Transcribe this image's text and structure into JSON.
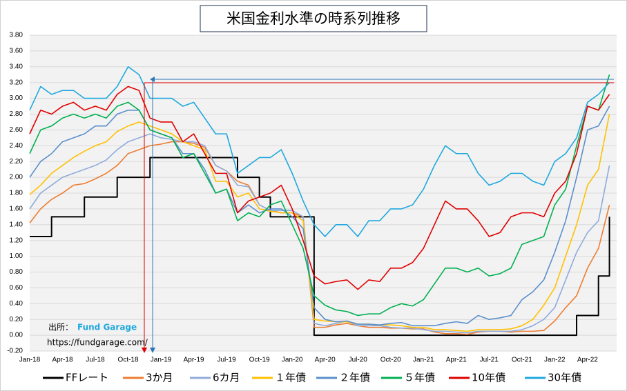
{
  "chart_data": {
    "type": "line",
    "title": "米国金利水準の時系列推移",
    "categories": [
      "Jan-18",
      null,
      null,
      "Apr-18",
      null,
      null,
      "Jul-18",
      null,
      null,
      "Oct-18",
      null,
      null,
      "Jan-19",
      null,
      null,
      "Apr-19",
      null,
      null,
      "Jul-19",
      null,
      null,
      "Oct-19",
      null,
      null,
      "Jan-20",
      null,
      null,
      "Apr-20",
      null,
      null,
      "Jul-20",
      null,
      null,
      "Oct-20",
      null,
      null,
      "Jan-21",
      null,
      null,
      "Apr-21",
      null,
      null,
      "Jul-21",
      null,
      null,
      "Oct-21",
      null,
      null,
      "Jan-22",
      null,
      null,
      "Apr-22",
      null,
      null
    ],
    "ylim": [
      -0.2,
      3.8
    ],
    "yticks": [
      {
        "value": -0.2,
        "label": "-0.20"
      },
      {
        "value": 0,
        "label": "0.00"
      },
      {
        "value": 0.2,
        "label": "0.20"
      },
      {
        "value": 0.4,
        "label": "0.40"
      },
      {
        "value": 0.6,
        "label": "0.60"
      },
      {
        "value": 0.8,
        "label": "0.80"
      },
      {
        "value": 1.0,
        "label": "1.00"
      },
      {
        "value": 1.2,
        "label": "1.20"
      },
      {
        "value": 1.4,
        "label": "1.40"
      },
      {
        "value": 1.6,
        "label": "1.60"
      },
      {
        "value": 1.8,
        "label": "1.80"
      },
      {
        "value": 2.0,
        "label": "2.00"
      },
      {
        "value": 2.2,
        "label": "2.20"
      },
      {
        "value": 2.4,
        "label": "2.40"
      },
      {
        "value": 2.6,
        "label": "2.60"
      },
      {
        "value": 2.8,
        "label": "2.80"
      },
      {
        "value": 3.0,
        "label": "3.00"
      },
      {
        "value": 3.2,
        "label": "3.20"
      },
      {
        "value": 3.4,
        "label": "3.40"
      },
      {
        "value": 3.6,
        "label": "3.60"
      },
      {
        "value": 3.8,
        "label": "3.80"
      }
    ],
    "grid": true,
    "source_label": "出所：",
    "source_name": "Fund Garage",
    "source_url": "https://fundgarage.com/",
    "series": [
      {
        "name": "FFレート",
        "color": "#000000",
        "step": true,
        "values": [
          1.25,
          1.25,
          1.5,
          1.5,
          1.5,
          1.75,
          1.75,
          1.75,
          2.0,
          2.0,
          2.0,
          2.25,
          2.25,
          2.25,
          2.25,
          2.25,
          2.25,
          2.25,
          2.25,
          2.0,
          2.0,
          1.75,
          1.5,
          1.5,
          1.5,
          1.5,
          0,
          0,
          0,
          0,
          0,
          0,
          0,
          0,
          0,
          0,
          0,
          0,
          0,
          0,
          0,
          0,
          0,
          0,
          0,
          0,
          0,
          0,
          0,
          0,
          0.25,
          0.25,
          0.75,
          1.5
        ]
      },
      {
        "name": "3か月",
        "color": "#ED7D31",
        "values": [
          1.42,
          1.6,
          1.72,
          1.8,
          1.9,
          1.92,
          1.98,
          2.05,
          2.15,
          2.3,
          2.35,
          2.4,
          2.42,
          2.45,
          2.45,
          2.43,
          2.38,
          2.15,
          2.08,
          1.95,
          1.9,
          1.65,
          1.58,
          1.55,
          1.55,
          1.5,
          0.1,
          0.1,
          0.13,
          0.15,
          0.12,
          0.1,
          0.1,
          0.09,
          0.09,
          0.08,
          0.08,
          0.04,
          0.02,
          0.02,
          0.01,
          0.04,
          0.05,
          0.05,
          0.04,
          0.05,
          0.05,
          0.06,
          0.18,
          0.35,
          0.5,
          0.85,
          1.1,
          1.65
        ]
      },
      {
        "name": "6カ月",
        "color": "#8FAADC",
        "values": [
          1.6,
          1.8,
          1.9,
          2.0,
          2.05,
          2.1,
          2.15,
          2.22,
          2.35,
          2.45,
          2.5,
          2.55,
          2.5,
          2.48,
          2.45,
          2.45,
          2.4,
          2.15,
          2.08,
          1.9,
          1.88,
          1.65,
          1.58,
          1.58,
          1.58,
          1.5,
          0.15,
          0.12,
          0.15,
          0.18,
          0.12,
          0.12,
          0.12,
          0.1,
          0.09,
          0.09,
          0.07,
          0.05,
          0.05,
          0.04,
          0.03,
          0.05,
          0.05,
          0.05,
          0.05,
          0.07,
          0.12,
          0.2,
          0.35,
          0.7,
          1.05,
          1.3,
          1.45,
          2.15
        ]
      },
      {
        "name": "１年債",
        "color": "#FFC000",
        "values": [
          1.78,
          1.9,
          2.05,
          2.15,
          2.25,
          2.33,
          2.4,
          2.45,
          2.58,
          2.65,
          2.7,
          2.65,
          2.6,
          2.55,
          2.45,
          2.4,
          2.35,
          1.95,
          1.95,
          1.75,
          1.8,
          1.6,
          1.57,
          1.55,
          1.55,
          1.45,
          0.2,
          0.18,
          0.17,
          0.17,
          0.14,
          0.14,
          0.13,
          0.13,
          0.12,
          0.1,
          0.1,
          0.07,
          0.07,
          0.06,
          0.05,
          0.07,
          0.07,
          0.07,
          0.08,
          0.12,
          0.2,
          0.38,
          0.6,
          1.0,
          1.4,
          1.9,
          2.1,
          2.8
        ]
      },
      {
        "name": "２年債",
        "color": "#5B8FCC",
        "values": [
          2.0,
          2.2,
          2.3,
          2.45,
          2.5,
          2.55,
          2.65,
          2.65,
          2.8,
          2.85,
          2.85,
          2.6,
          2.55,
          2.5,
          2.3,
          2.3,
          2.1,
          1.8,
          1.85,
          1.55,
          1.65,
          1.55,
          1.6,
          1.6,
          1.5,
          1.35,
          0.35,
          0.2,
          0.17,
          0.18,
          0.14,
          0.14,
          0.13,
          0.15,
          0.16,
          0.12,
          0.12,
          0.12,
          0.15,
          0.17,
          0.15,
          0.25,
          0.2,
          0.22,
          0.25,
          0.45,
          0.55,
          0.7,
          1.05,
          1.45,
          2.0,
          2.6,
          2.65,
          2.9
        ]
      },
      {
        "name": "５年債",
        "color": "#00B050",
        "values": [
          2.3,
          2.6,
          2.65,
          2.75,
          2.8,
          2.75,
          2.8,
          2.75,
          2.9,
          2.95,
          2.85,
          2.6,
          2.55,
          2.5,
          2.25,
          2.3,
          2.05,
          1.8,
          1.85,
          1.45,
          1.55,
          1.5,
          1.65,
          1.7,
          1.4,
          1.1,
          0.5,
          0.38,
          0.32,
          0.3,
          0.25,
          0.27,
          0.27,
          0.35,
          0.4,
          0.37,
          0.45,
          0.65,
          0.85,
          0.85,
          0.8,
          0.85,
          0.75,
          0.78,
          0.85,
          1.15,
          1.2,
          1.25,
          1.65,
          1.85,
          2.4,
          2.9,
          2.85,
          3.3
        ]
      },
      {
        "name": "10年債",
        "color": "#E00000",
        "values": [
          2.55,
          2.85,
          2.8,
          2.9,
          2.95,
          2.85,
          2.9,
          2.85,
          3.05,
          3.15,
          3.1,
          2.75,
          2.7,
          2.7,
          2.45,
          2.55,
          2.3,
          2.05,
          2.05,
          1.55,
          1.7,
          1.75,
          1.8,
          1.9,
          1.6,
          1.2,
          0.75,
          0.65,
          0.68,
          0.7,
          0.58,
          0.7,
          0.68,
          0.85,
          0.85,
          0.92,
          1.1,
          1.4,
          1.7,
          1.6,
          1.6,
          1.45,
          1.25,
          1.3,
          1.5,
          1.55,
          1.55,
          1.5,
          1.8,
          1.95,
          2.3,
          2.9,
          2.85,
          3.05
        ]
      },
      {
        "name": "30年債",
        "color": "#1FA8DE",
        "values": [
          2.85,
          3.15,
          3.05,
          3.1,
          3.1,
          3.0,
          3.0,
          3.0,
          3.15,
          3.4,
          3.3,
          3.0,
          3.0,
          3.0,
          2.9,
          2.95,
          2.75,
          2.55,
          2.55,
          2.05,
          2.15,
          2.25,
          2.25,
          2.35,
          2.05,
          1.7,
          1.4,
          1.25,
          1.4,
          1.4,
          1.25,
          1.45,
          1.45,
          1.6,
          1.6,
          1.65,
          1.85,
          2.15,
          2.4,
          2.3,
          2.3,
          2.05,
          1.9,
          1.95,
          2.05,
          2.05,
          1.95,
          1.9,
          2.2,
          2.3,
          2.5,
          2.95,
          3.05,
          3.2
        ]
      }
    ]
  }
}
